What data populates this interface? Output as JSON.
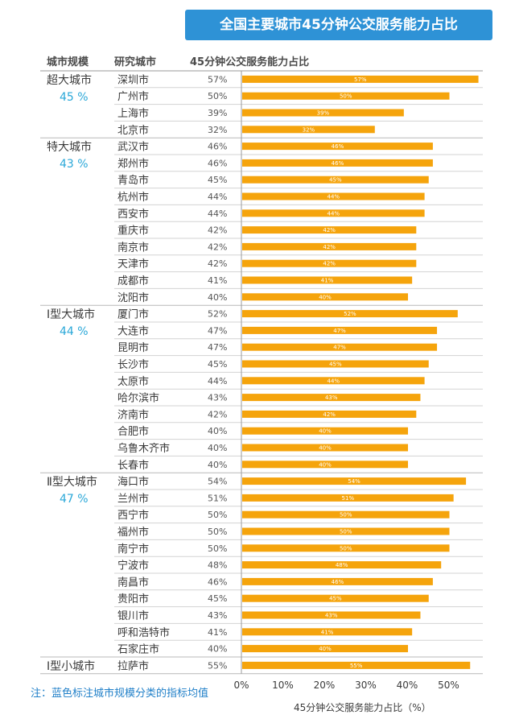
{
  "title": "全国主要城市45分钟公交服务能力占比",
  "headers": {
    "group": "城市规模",
    "city": "研究城市",
    "value": "45分钟公交服务能力占比"
  },
  "note": "注：蓝色标注城市规模分类的指标均值",
  "colors": {
    "bar": "#f5a40c",
    "accent": "#2e92d6",
    "avg": "#29a7d8",
    "grid": "#d3d3d3"
  },
  "chart_data": {
    "type": "bar",
    "orientation": "horizontal",
    "title": "全国主要城市45分钟公交服务能力占比",
    "xlabel": "45分钟公交服务能力占比（%）",
    "ylabel": "研究城市",
    "xlim": [
      0,
      60
    ],
    "xticks": [
      "0%",
      "10%",
      "20%",
      "30%",
      "40%",
      "50%"
    ],
    "groups": [
      {
        "name": "超大城市",
        "avg_label": "45 %",
        "start": 0,
        "count": 4
      },
      {
        "name": "特大城市",
        "avg_label": "43 %",
        "start": 4,
        "count": 10
      },
      {
        "name": "Ⅰ型大城市",
        "avg_label": "44 %",
        "start": 14,
        "count": 10
      },
      {
        "name": "Ⅱ型大城市",
        "avg_label": "47 %",
        "start": 24,
        "count": 11
      },
      {
        "name": "Ⅰ型小城市",
        "avg_label": "",
        "start": 35,
        "count": 1
      }
    ],
    "categories": [
      "深圳市",
      "广州市",
      "上海市",
      "北京市",
      "武汉市",
      "郑州市",
      "青岛市",
      "杭州市",
      "西安市",
      "重庆市",
      "南京市",
      "天津市",
      "成都市",
      "沈阳市",
      "厦门市",
      "大连市",
      "昆明市",
      "长沙市",
      "太原市",
      "哈尔滨市",
      "济南市",
      "合肥市",
      "乌鲁木齐市",
      "长春市",
      "海口市",
      "兰州市",
      "西宁市",
      "福州市",
      "南宁市",
      "宁波市",
      "南昌市",
      "贵阳市",
      "银川市",
      "呼和浩特市",
      "石家庄市",
      "拉萨市"
    ],
    "values": [
      57,
      50,
      39,
      32,
      46,
      46,
      45,
      44,
      44,
      42,
      42,
      42,
      41,
      40,
      52,
      47,
      47,
      45,
      44,
      43,
      42,
      40,
      40,
      40,
      54,
      51,
      50,
      50,
      50,
      48,
      46,
      45,
      43,
      41,
      40,
      55
    ],
    "labels": [
      "57%",
      "50%",
      "39%",
      "32%",
      "46%",
      "46%",
      "45%",
      "44%",
      "44%",
      "42%",
      "42%",
      "42%",
      "41%",
      "40%",
      "52%",
      "47%",
      "47%",
      "45%",
      "44%",
      "43%",
      "42%",
      "40%",
      "40%",
      "40%",
      "54%",
      "51%",
      "50%",
      "50%",
      "50%",
      "48%",
      "46%",
      "45%",
      "43%",
      "41%",
      "40%",
      "55%"
    ]
  }
}
